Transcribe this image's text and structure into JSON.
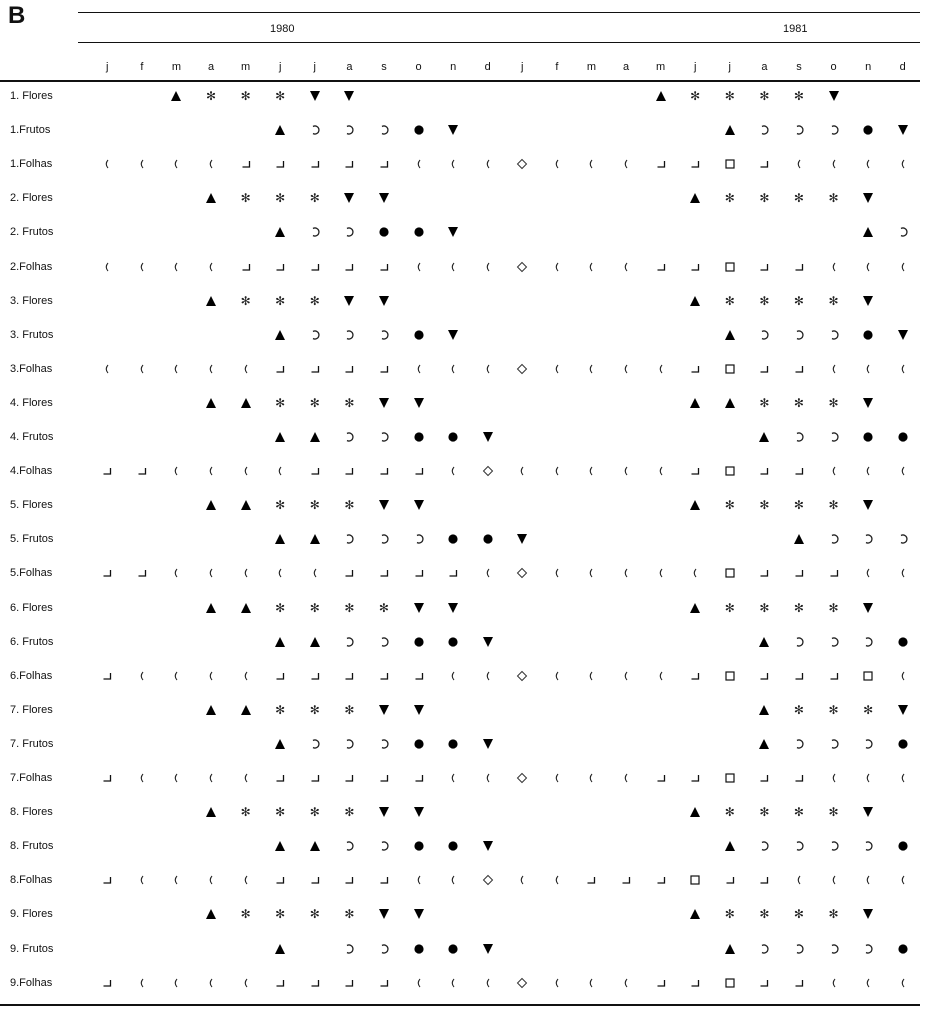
{
  "panel_label": "B",
  "chart_data": {
    "type": "table",
    "years": [
      {
        "label": "1980",
        "months": [
          "j",
          "f",
          "m",
          "a",
          "m",
          "j",
          "j",
          "a",
          "s",
          "o",
          "n",
          "d"
        ]
      },
      {
        "label": "1981",
        "months": [
          "j",
          "f",
          "m",
          "a",
          "m",
          "j",
          "j",
          "a",
          "s",
          "o",
          "n",
          "d"
        ]
      }
    ],
    "symbols_legend_names": {
      "A": "triangle-up-icon",
      "S": "asterisk-icon",
      "V": "triangle-down-icon",
      "C": "crescent-icon",
      "O": "filled-circle-icon",
      "P": "open-paren-icon",
      "L": "corner-bracket-icon",
      "Q": "open-square-icon",
      "D": "diamond-icon"
    },
    "rows": [
      {
        "label": "1. Flores",
        "codes": "..ASSSVV........ASSSSV......"
      },
      {
        "label": "1.Frutos",
        "codes": ".....ACCCOV.......ACCCOV...."
      },
      {
        "label": "1.Folhas",
        "codes": "PPPPLLLLLPPPDPPPLLQLPPPP"
      },
      {
        "label": "2. Flores",
        "codes": "...ASSSVV........ASSSSV....."
      },
      {
        "label": "2. Frutos",
        "codes": ".....ACCOOV...........ACCCOV"
      },
      {
        "label": "2.Folhas",
        "codes": "PPPPLLLLLPPPDPPPLLQLLPPP"
      },
      {
        "label": "3. Flores",
        "codes": "...ASSSVV........ASSSSV....."
      },
      {
        "label": "3. Frutos",
        "codes": ".....ACCCOV.......ACCCOV...."
      },
      {
        "label": "3.Folhas",
        "codes": "PPPPPLLLLPPPDPPPPLQLLPPP"
      },
      {
        "label": "4. Flores",
        "codes": "...AASSSVV.......AASSSV....."
      },
      {
        "label": "4. Frutos",
        "codes": ".....AACCOOV.......ACCOOV..."
      },
      {
        "label": "4.Folhas",
        "codes": "LLPPPPLLLLPDPPPPPLQLLPPP"
      },
      {
        "label": "5. Flores",
        "codes": "...AASSSVV.......ASSSSV....."
      },
      {
        "label": "5. Frutos",
        "codes": ".....AACCCOOV.......ACCCOOV."
      },
      {
        "label": "5.Folhas",
        "codes": "LLPPPPPLLLLPDPPPPPQLLLPP"
      },
      {
        "label": "6. Flores",
        "codes": "...AASSSSVV......ASSSSV....."
      },
      {
        "label": "6. Frutos",
        "codes": ".....AACCOOV.......ACCCOOV.."
      },
      {
        "label": "6.Folhas",
        "codes": "LPPPPLLLLLPPDPPPPLQLLLQP"
      },
      {
        "label": "7. Flores",
        "codes": "...AASSSVV.........ASSSV...."
      },
      {
        "label": "7. Frutos",
        "codes": ".....ACCCOOV.......ACCCOOV.."
      },
      {
        "label": "7.Folhas",
        "codes": "LPPPPLLLLLPPDPPPLLQLLPPP"
      },
      {
        "label": "8. Flores",
        "codes": "...ASSSSVV.......ASSSSV....."
      },
      {
        "label": "8. Frutos",
        "codes": ".....AACCOOV......ACCCCOOV.."
      },
      {
        "label": "8.Folhas",
        "codes": "LPPPPLLLLPPDPPLLLQLLPPPP"
      },
      {
        "label": "9. Flores",
        "codes": "...ASSSSVV.......ASSSSV....."
      },
      {
        "label": "9. Frutos",
        "codes": ".....A.CCOOV......ACCCCOOV.."
      },
      {
        "label": "9.Folhas",
        "codes": "LPPPPLLLLPPPDPPPLLQLLPPP"
      }
    ]
  }
}
